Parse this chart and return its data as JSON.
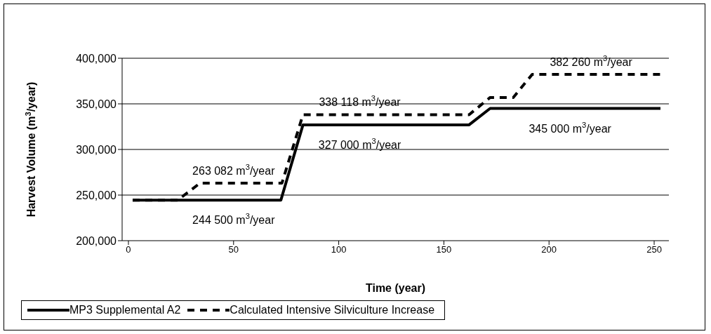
{
  "chart_data": {
    "type": "line",
    "xlabel": "Time (year)",
    "ylabel": "Harvest Volume (m$^{3}$/year)",
    "xlim": [
      -3,
      257
    ],
    "xticks": [
      0,
      50,
      100,
      150,
      200,
      250
    ],
    "ylim": [
      200000,
      400000
    ],
    "yticks": [
      {
        "value": 200000,
        "label": "200,000"
      },
      {
        "value": 250000,
        "label": "250,000"
      },
      {
        "value": 300000,
        "label": "300,000"
      },
      {
        "value": 350000,
        "label": "350,000"
      },
      {
        "value": 400000,
        "label": "400,000"
      }
    ],
    "grid": "y",
    "legend": "bottom",
    "marker": "none",
    "series": [
      {
        "name": "MP3 Supplemental A2",
        "color": "#000000",
        "line_style": "solid",
        "x": [
          2,
          72.5,
          83,
          162,
          172,
          253
        ],
        "values": [
          244500,
          244500,
          327000,
          327000,
          345000,
          345000
        ]
      },
      {
        "name": "Calculated Intensive Silviculture Increase",
        "color": "#000000",
        "line_style": "dashed",
        "x": [
          2,
          23.5,
          34,
          73,
          83,
          162,
          172,
          183,
          192,
          253
        ],
        "values": [
          244500,
          244500,
          263082,
          263082,
          338118,
          338118,
          357000,
          357000,
          382260,
          382260
        ]
      }
    ],
    "annotations": [
      {
        "text": "244 500 m$^{3}$/year",
        "x": 50,
        "y": 244500
      },
      {
        "text": "263 082 m$^{3}$/year",
        "x": 50,
        "y": 263082
      },
      {
        "text": "338 118 m$^{3}$/year",
        "x": 110,
        "y": 338118
      },
      {
        "text": "327 000 m$^{3}$/year",
        "x": 110,
        "y": 327000
      },
      {
        "text": "345 000 m$^{3}$/year",
        "x": 210,
        "y": 345000
      },
      {
        "text": "382 260 m$^{3}$/year",
        "x": 220,
        "y": 382260
      }
    ]
  }
}
